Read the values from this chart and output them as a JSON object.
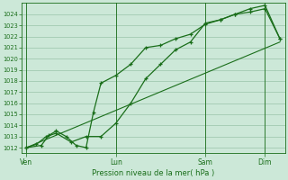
{
  "bg_color": "#cce8d8",
  "grid_color": "#99c4aa",
  "line_color": "#1a6e1a",
  "ylim": [
    1011.5,
    1025.0
  ],
  "yticks": [
    1012,
    1013,
    1014,
    1015,
    1016,
    1017,
    1018,
    1019,
    1020,
    1021,
    1022,
    1023,
    1024
  ],
  "xlabel": "Pression niveau de la mer( hPa )",
  "xtick_labels": [
    "Ven",
    "Lun",
    "Sam",
    "Dim"
  ],
  "xtick_positions": [
    0,
    36,
    72,
    96
  ],
  "xlim": [
    -2,
    104
  ],
  "line1_x": [
    0,
    6,
    9,
    12,
    16,
    20,
    24,
    27,
    30,
    36,
    42,
    48,
    54,
    60,
    66,
    72,
    78,
    84,
    90,
    96,
    102
  ],
  "line1_y": [
    1012,
    1012.2,
    1013.1,
    1013.5,
    1013.0,
    1012.2,
    1012.0,
    1015.2,
    1017.8,
    1018.5,
    1019.5,
    1021.0,
    1021.2,
    1021.8,
    1022.2,
    1023.1,
    1023.5,
    1024.0,
    1024.2,
    1024.5,
    1021.8
  ],
  "line2_x": [
    0,
    4,
    8,
    12,
    18,
    24,
    30,
    36,
    42,
    48,
    54,
    60,
    66,
    72,
    78,
    84,
    90,
    96,
    102
  ],
  "line2_y": [
    1012.0,
    1012.3,
    1013.0,
    1013.3,
    1012.5,
    1013.0,
    1013.0,
    1014.2,
    1016.0,
    1018.2,
    1019.5,
    1020.8,
    1021.5,
    1023.2,
    1023.5,
    1024.0,
    1024.5,
    1024.8,
    1021.8
  ],
  "trend_x": [
    0,
    102
  ],
  "trend_y": [
    1012.0,
    1021.5
  ]
}
